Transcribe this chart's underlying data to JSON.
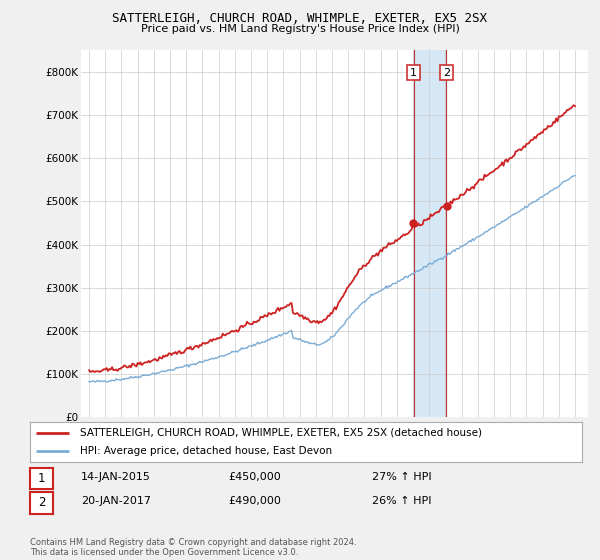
{
  "title": "SATTERLEIGH, CHURCH ROAD, WHIMPLE, EXETER, EX5 2SX",
  "subtitle": "Price paid vs. HM Land Registry's House Price Index (HPI)",
  "legend_line1": "SATTERLEIGH, CHURCH ROAD, WHIMPLE, EXETER, EX5 2SX (detached house)",
  "legend_line2": "HPI: Average price, detached house, East Devon",
  "annotation1_date": "14-JAN-2015",
  "annotation1_price": "£450,000",
  "annotation1_hpi": "27% ↑ HPI",
  "annotation2_date": "20-JAN-2017",
  "annotation2_price": "£490,000",
  "annotation2_hpi": "26% ↑ HPI",
  "footer": "Contains HM Land Registry data © Crown copyright and database right 2024.\nThis data is licensed under the Open Government Licence v3.0.",
  "hpi_color": "#7aacd6",
  "price_color": "#cc2222",
  "background_color": "#f0f0f0",
  "plot_bg_color": "#ffffff",
  "highlight_color": "#d6e8f5",
  "ylim": [
    0,
    850000
  ],
  "yticks": [
    0,
    100000,
    200000,
    300000,
    400000,
    500000,
    600000,
    700000,
    800000
  ],
  "ytick_labels": [
    "£0",
    "£100K",
    "£200K",
    "£300K",
    "£400K",
    "£500K",
    "£600K",
    "£700K",
    "£800K"
  ],
  "sale1_year": 2015.04,
  "sale2_year": 2017.05,
  "sale1_price": 450000,
  "sale2_price": 490000
}
